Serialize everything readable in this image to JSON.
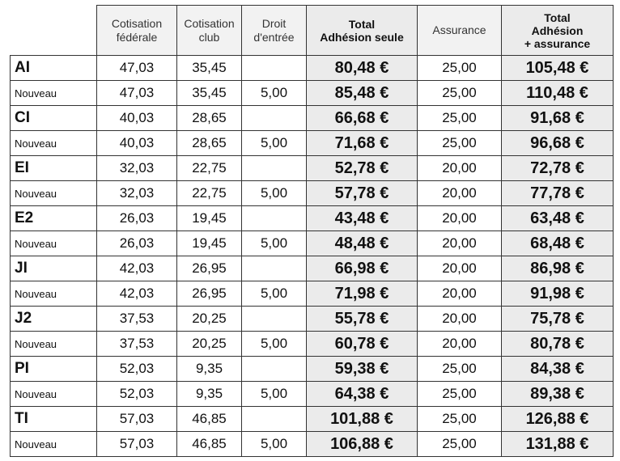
{
  "table": {
    "header": [
      [
        "Cotisation",
        "fédérale"
      ],
      [
        "Cotisation",
        "club"
      ],
      [
        "Droit",
        "d'entrée"
      ],
      [
        "Total",
        "Adhésion seule"
      ],
      [
        "Assurance"
      ],
      [
        "Total",
        "Adhésion",
        "+ assurance"
      ]
    ],
    "rows": [
      [
        "AI",
        "47,03",
        "35,45",
        null,
        "80,48 €",
        "25,00",
        "105,48 €"
      ],
      [
        "Nouveau",
        "47,03",
        "35,45",
        "5,00",
        "85,48 €",
        "25,00",
        "110,48 €"
      ],
      [
        "CI",
        "40,03",
        "28,65",
        null,
        "66,68 €",
        "25,00",
        "91,68 €"
      ],
      [
        "Nouveau",
        "40,03",
        "28,65",
        "5,00",
        "71,68 €",
        "25,00",
        "96,68 €"
      ],
      [
        "EI",
        "32,03",
        "22,75",
        null,
        "52,78 €",
        "20,00",
        "72,78 €"
      ],
      [
        "Nouveau",
        "32,03",
        "22,75",
        "5,00",
        "57,78 €",
        "20,00",
        "77,78 €"
      ],
      [
        "E2",
        "26,03",
        "19,45",
        null,
        "43,48 €",
        "20,00",
        "63,48 €"
      ],
      [
        "Nouveau",
        "26,03",
        "19,45",
        "5,00",
        "48,48 €",
        "20,00",
        "68,48 €"
      ],
      [
        "JI",
        "42,03",
        "26,95",
        null,
        "66,98 €",
        "20,00",
        "86,98 €"
      ],
      [
        "Nouveau",
        "42,03",
        "26,95",
        "5,00",
        "71,98 €",
        "20,00",
        "91,98 €"
      ],
      [
        "J2",
        "37,53",
        "20,25",
        null,
        "55,78 €",
        "20,00",
        "75,78 €"
      ],
      [
        "Nouveau",
        "37,53",
        "20,25",
        "5,00",
        "60,78 €",
        "20,00",
        "80,78 €"
      ],
      [
        "PI",
        "52,03",
        "9,35",
        null,
        "59,38 €",
        "25,00",
        "84,38 €"
      ],
      [
        "Nouveau",
        "52,03",
        "9,35",
        "5,00",
        "64,38 €",
        "25,00",
        "89,38 €"
      ],
      [
        "TI",
        "57,03",
        "46,85",
        null,
        "101,88 €",
        "25,00",
        "126,88 €"
      ],
      [
        "Nouveau",
        "57,03",
        "46,85",
        "5,00",
        "106,88 €",
        "25,00",
        "131,88 €"
      ]
    ]
  }
}
